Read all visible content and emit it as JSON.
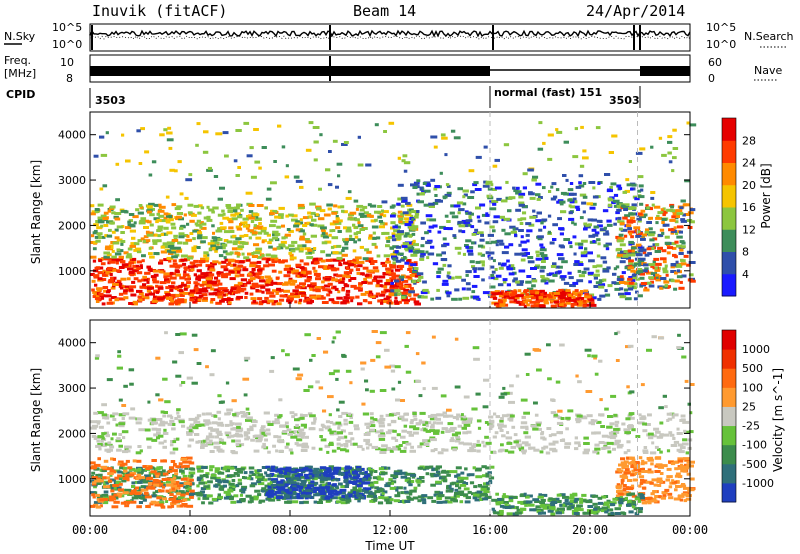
{
  "header": {
    "station": "Inuvik (fitACF)",
    "beam": "Beam 14",
    "date": "24/Apr/2014"
  },
  "summary_panels": {
    "nsky_label": "N.Sky",
    "nsky_tick_top": "10^5",
    "nsky_tick_bottom": "10^0",
    "nsearch_label": "N.Search",
    "nsearch_tick_top": "10^5",
    "nsearch_tick_bottom": "10^0",
    "freq_label_1": "Freq.",
    "freq_label_2": "[MHz]",
    "freq_tick_top": "10",
    "freq_tick_bottom": "8",
    "nave_label": "Nave",
    "nave_tick_top": "60",
    "nave_tick_bottom": "0",
    "cpid_label": "CPID",
    "cpid_segments": [
      {
        "text": "3503",
        "start_hour": 0
      },
      {
        "text": "normal (fast) 151",
        "start_hour": 16
      },
      {
        "text": "3503",
        "start_hour": 21.9
      }
    ]
  },
  "chart_data": [
    {
      "type": "heatmap",
      "parameter": "power",
      "ylabel": "Slant Range [km]",
      "colorbar_label": "Power [dB]",
      "colorbar_ticks": [
        "4",
        "8",
        "12",
        "16",
        "20",
        "24",
        "28"
      ],
      "colorbar_colors": [
        "#1a1aff",
        "#2f4faa",
        "#3d8d5a",
        "#8cc63f",
        "#f5c400",
        "#ff8a00",
        "#ff3b00",
        "#e60000"
      ],
      "xlim_hours": [
        0,
        24
      ],
      "ylim_km": [
        180,
        4500
      ],
      "yticks": [
        "1000",
        "2000",
        "3000",
        "4000"
      ],
      "ytick_values": [
        1000,
        2000,
        3000,
        4000
      ]
    },
    {
      "type": "heatmap",
      "parameter": "velocity",
      "ylabel": "Slant Range [km]",
      "xlabel": "Time UT",
      "colorbar_label": "Velocity [m s^-1]",
      "colorbar_ticks": [
        "1000",
        "500",
        "100",
        "25",
        "-25",
        "-100",
        "-500",
        "-1000"
      ],
      "colorbar_colors": [
        "#1f3fbf",
        "#2f6f7a",
        "#3c8c4c",
        "#66c23a",
        "#c8c8c0",
        "#ff9a30",
        "#ff6a10",
        "#f03000",
        "#e00000"
      ],
      "xlim_hours": [
        0,
        24
      ],
      "ylim_km": [
        180,
        4500
      ],
      "yticks": [
        "1000",
        "2000",
        "3000",
        "4000"
      ],
      "ytick_values": [
        1000,
        2000,
        3000,
        4000
      ],
      "xticks": [
        "00:00",
        "04:00",
        "08:00",
        "12:00",
        "16:00",
        "20:00",
        "00:00"
      ],
      "xtick_hours": [
        0,
        4,
        8,
        12,
        16,
        20,
        24
      ]
    }
  ]
}
